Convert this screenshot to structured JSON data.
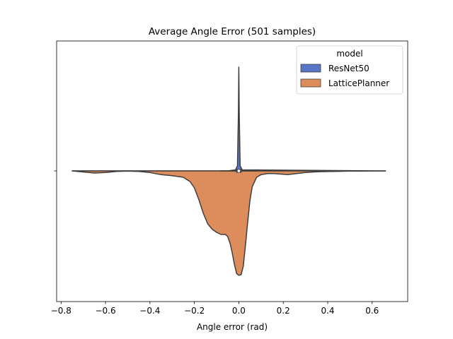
{
  "chart_data": {
    "type": "split-violin",
    "title": "Average Angle Error (501 samples)",
    "xlabel": "Angle error (rad)",
    "ylabel": "",
    "xlim": [
      -0.82,
      0.76
    ],
    "xticks": [
      -0.8,
      -0.6,
      -0.4,
      -0.2,
      0.0,
      0.2,
      0.4,
      0.6
    ],
    "xtick_labels": [
      "−0.8",
      "−0.6",
      "−0.4",
      "−0.2",
      "0.0",
      "0.2",
      "0.4",
      "0.6"
    ],
    "grid": false,
    "legend": {
      "title": "model",
      "location": "upper right",
      "entries": [
        {
          "label": "ResNet50",
          "color": "#5975c7"
        },
        {
          "label": "LatticePlanner",
          "color": "#dd8c5c"
        }
      ]
    },
    "series": [
      {
        "name": "ResNet50",
        "color": "#5975c7",
        "side": "upper",
        "density": [
          [
            -0.75,
            0.0
          ],
          [
            -0.05,
            0.0
          ],
          [
            -0.015,
            0.01
          ],
          [
            -0.006,
            0.05
          ],
          [
            -0.002,
            0.55
          ],
          [
            0.0,
            1.0
          ],
          [
            0.002,
            0.55
          ],
          [
            0.006,
            0.05
          ],
          [
            0.015,
            0.01
          ],
          [
            0.66,
            0.0
          ]
        ]
      },
      {
        "name": "LatticePlanner",
        "color": "#dd8c5c",
        "side": "lower",
        "density": [
          [
            -0.75,
            0.0
          ],
          [
            -0.7,
            0.01
          ],
          [
            -0.65,
            0.02
          ],
          [
            -0.6,
            0.015
          ],
          [
            -0.55,
            0.005
          ],
          [
            -0.5,
            0.002
          ],
          [
            -0.45,
            0.005
          ],
          [
            -0.4,
            0.015
          ],
          [
            -0.35,
            0.035
          ],
          [
            -0.3,
            0.045
          ],
          [
            -0.25,
            0.06
          ],
          [
            -0.22,
            0.1
          ],
          [
            -0.2,
            0.16
          ],
          [
            -0.18,
            0.27
          ],
          [
            -0.16,
            0.4
          ],
          [
            -0.14,
            0.5
          ],
          [
            -0.12,
            0.55
          ],
          [
            -0.1,
            0.58
          ],
          [
            -0.08,
            0.6
          ],
          [
            -0.06,
            0.6
          ],
          [
            -0.05,
            0.62
          ],
          [
            -0.04,
            0.68
          ],
          [
            -0.03,
            0.77
          ],
          [
            -0.02,
            0.88
          ],
          [
            -0.01,
            0.97
          ],
          [
            0.0,
            0.985
          ],
          [
            0.01,
            0.98
          ],
          [
            0.02,
            0.9
          ],
          [
            0.03,
            0.7
          ],
          [
            0.04,
            0.48
          ],
          [
            0.05,
            0.28
          ],
          [
            0.06,
            0.15
          ],
          [
            0.08,
            0.06
          ],
          [
            0.1,
            0.035
          ],
          [
            0.13,
            0.025
          ],
          [
            0.16,
            0.025
          ],
          [
            0.19,
            0.03
          ],
          [
            0.22,
            0.035
          ],
          [
            0.26,
            0.025
          ],
          [
            0.3,
            0.015
          ],
          [
            0.35,
            0.008
          ],
          [
            0.4,
            0.006
          ],
          [
            0.45,
            0.004
          ],
          [
            0.5,
            0.002
          ],
          [
            0.55,
            0.001
          ],
          [
            0.6,
            0.0
          ],
          [
            0.66,
            0.0
          ]
        ]
      }
    ]
  }
}
